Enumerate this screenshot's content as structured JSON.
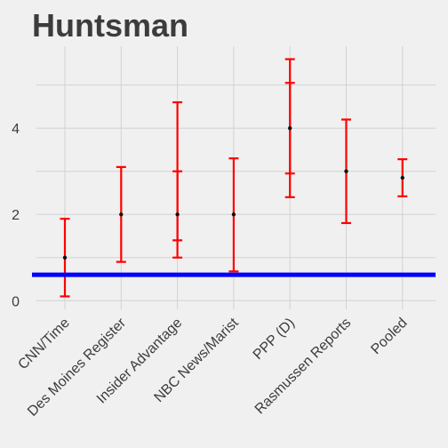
{
  "chart_data": {
    "type": "errorbar",
    "title": "Huntsman",
    "xlabel": "",
    "ylabel": "",
    "ylim": [
      -0.2,
      5.9
    ],
    "y_ticks": [
      0,
      2,
      4
    ],
    "grid": true,
    "categories": [
      "CNN/Time",
      "Des Moines Register",
      "Insider Advantage",
      "NBC News/Marist",
      "PPP (D)",
      "Rasmussen Reports",
      "Pooled"
    ],
    "estimates": [
      1,
      2,
      2,
      2,
      4,
      3,
      2.85
    ],
    "outer_intervals": [
      [
        0.1,
        1.9
      ],
      [
        0.9,
        3.1
      ],
      [
        1.0,
        4.6
      ],
      [
        0.68,
        3.3
      ],
      [
        2.4,
        5.6
      ],
      [
        1.8,
        4.2
      ],
      [
        2.42,
        3.28
      ]
    ],
    "inner_intervals": [
      null,
      null,
      [
        1.4,
        3.0
      ],
      null,
      [
        2.95,
        5.05
      ],
      null,
      null
    ],
    "reference_line": 0.6,
    "colors": {
      "background": "#f0f0f0",
      "error_bar": "#ff0000",
      "point": "#111111",
      "reference_line": "#0000ff",
      "grid": "#d2d2d2",
      "text": "#3c3c3c"
    }
  }
}
